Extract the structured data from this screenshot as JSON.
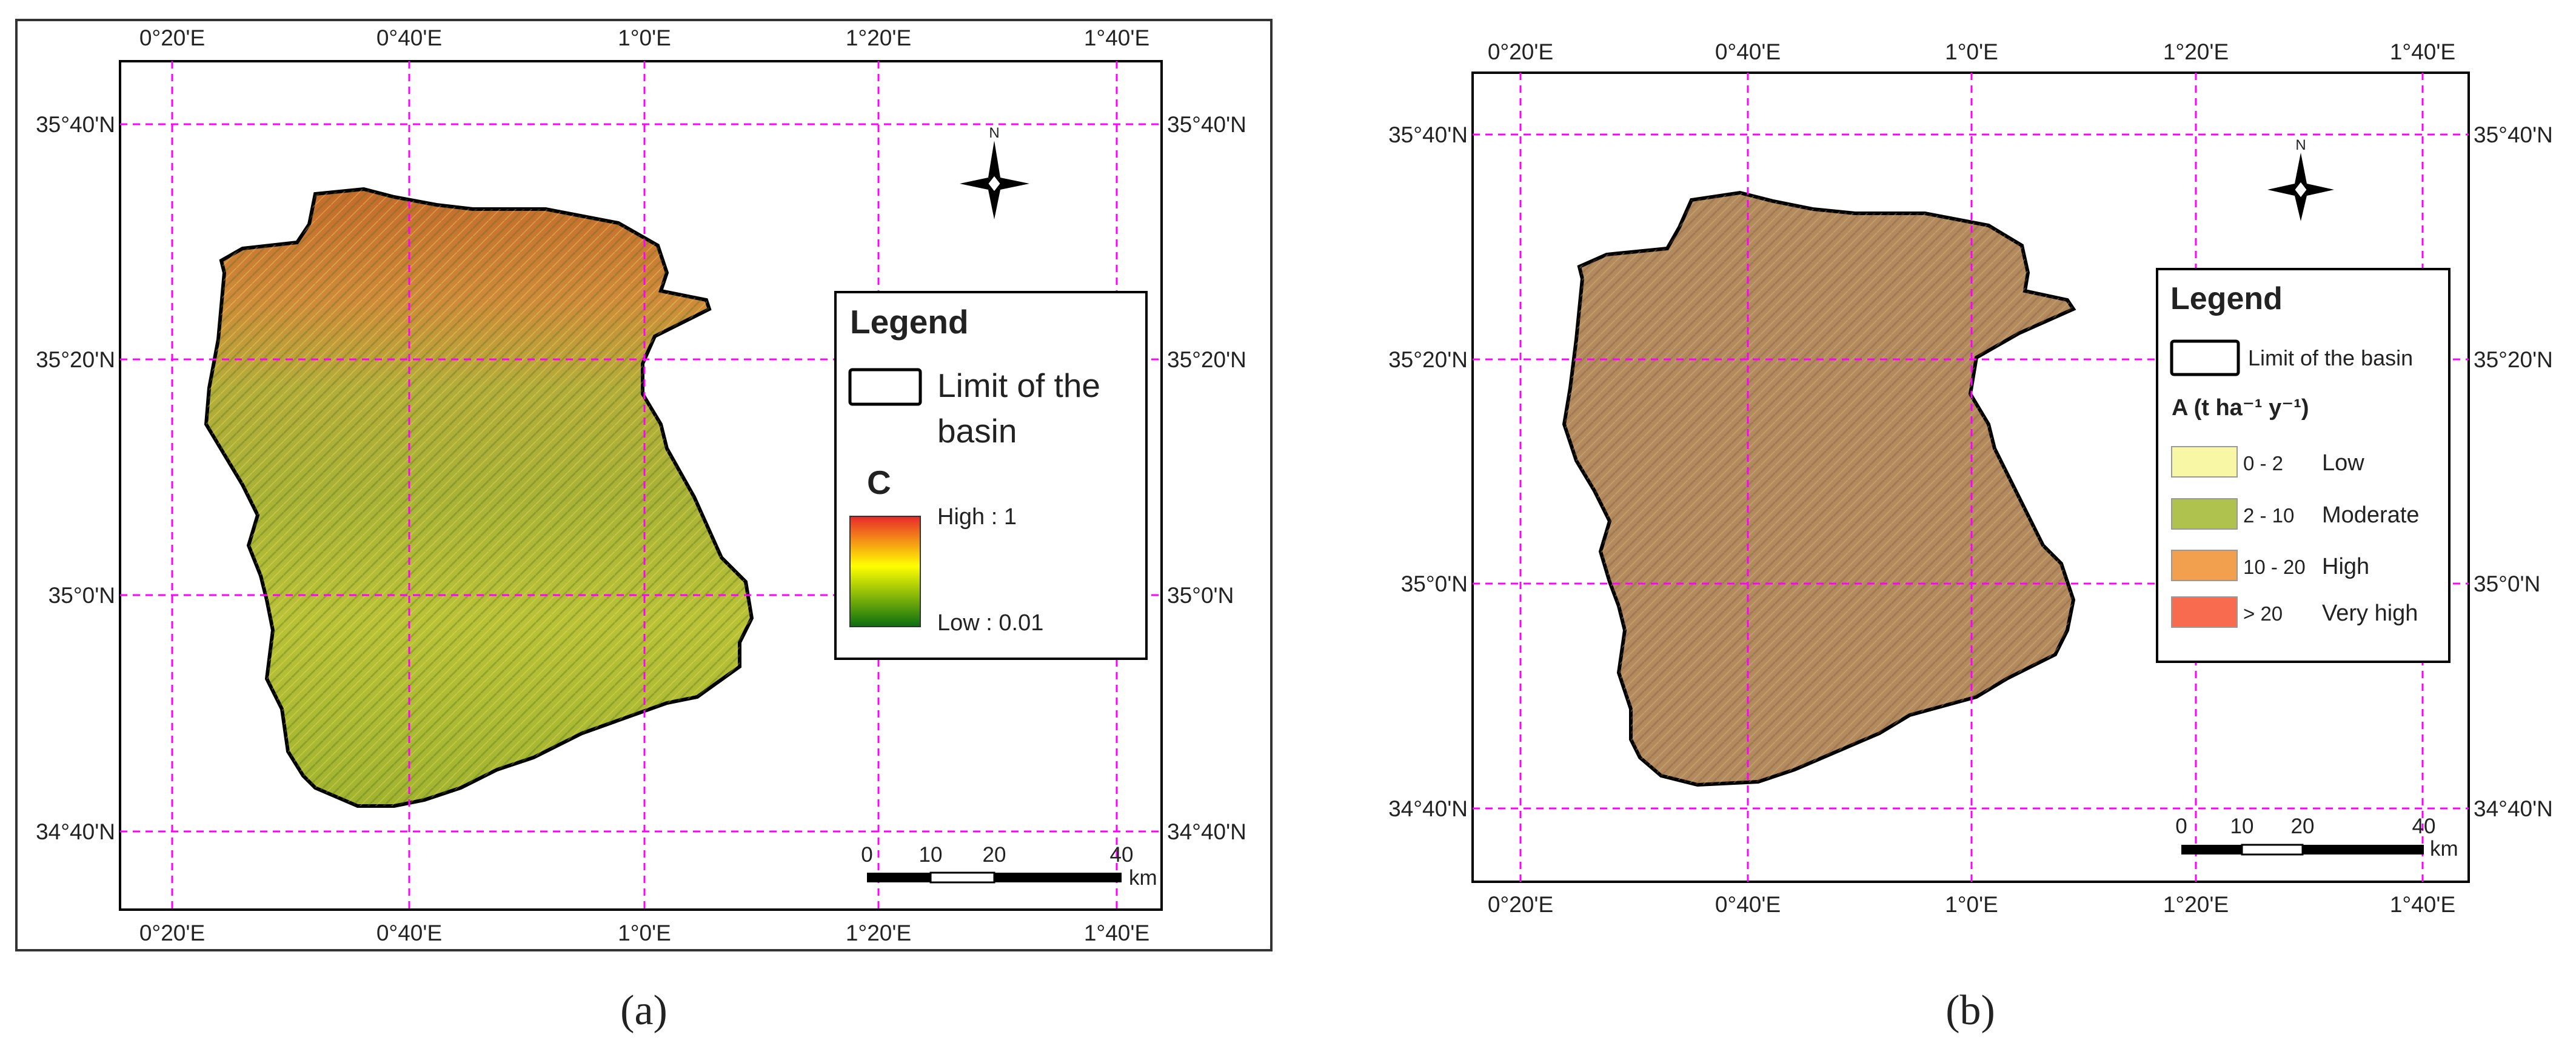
{
  "colors": {
    "grid": "#ff00ff",
    "frame": "#000000",
    "basin_outline": "#000000",
    "c_high": "#e8282b",
    "c_mid": "#ffff00",
    "c_low": "#0a7a10",
    "erosion_map_tone": "#b58a5a"
  },
  "map_a": {
    "panel_label": "(a)",
    "lon_labels": [
      "0°20'E",
      "0°40'E",
      "1°0'E",
      "1°20'E",
      "1°40'E"
    ],
    "lat_labels": [
      "35°40'N",
      "35°20'N",
      "35°0'N",
      "34°40'N"
    ],
    "north_letter": "N",
    "north_arrow_icon": "north-arrow-icon",
    "legend": {
      "title": "Legend",
      "basin_label_line1": "Limit of the",
      "basin_label_line2": "basin",
      "variable": "C",
      "high_label": "High : 1",
      "low_label": "Low : 0.01"
    },
    "scale": {
      "ticks": [
        "0",
        "10",
        "20",
        "40"
      ],
      "unit": "km"
    }
  },
  "map_b": {
    "panel_label": "(b)",
    "lon_labels": [
      "0°20'E",
      "0°40'E",
      "1°0'E",
      "1°20'E",
      "1°40'E"
    ],
    "lat_labels": [
      "35°40'N",
      "35°20'N",
      "35°0'N",
      "34°40'N"
    ],
    "north_letter": "N",
    "north_arrow_icon": "north-arrow-icon",
    "legend": {
      "title": "Legend",
      "basin_label": "Limit of the basin",
      "variable": "A (t ha⁻¹ y⁻¹)",
      "classes": [
        {
          "range": "0 - 2",
          "label": "Low",
          "color": "#f7f7a6"
        },
        {
          "range": "2 - 10",
          "label": "Moderate",
          "color": "#b0c24e"
        },
        {
          "range": "10 - 20",
          "label": "High",
          "color": "#f2a04e"
        },
        {
          "range": "> 20",
          "label": "Very high",
          "color": "#f86b4e"
        }
      ]
    },
    "scale": {
      "ticks": [
        "0",
        "10",
        "20",
        "40"
      ],
      "unit": "km"
    }
  }
}
